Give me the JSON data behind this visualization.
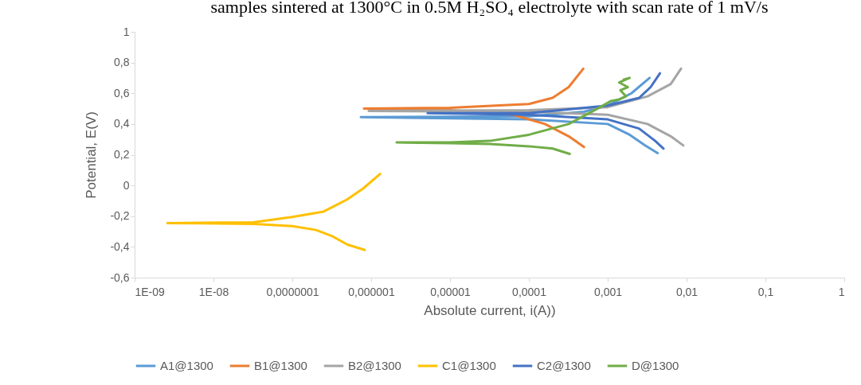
{
  "chart_data": {
    "type": "line",
    "title": "samples sintered at 1300°C in 0.5M H₂SO₄ electrolyte with scan rate of 1 mV/s",
    "xlabel": "Absolute current, i(A))",
    "ylabel": "Potential, E(V)",
    "log": "x",
    "grid": false,
    "legend": "bottom",
    "marker": "none",
    "line_style": "solid",
    "xlim": [
      1e-09,
      1
    ],
    "xticks": [
      {
        "value": 1e-09,
        "label": "1E-09"
      },
      {
        "value": 1e-08,
        "label": "1E-08"
      },
      {
        "value": 1e-07,
        "label": "0,0000001"
      },
      {
        "value": 1e-06,
        "label": "0,000001"
      },
      {
        "value": 1e-05,
        "label": "0,00001"
      },
      {
        "value": 0.0001,
        "label": "0,0001"
      },
      {
        "value": 0.001,
        "label": "0,001"
      },
      {
        "value": 0.01,
        "label": "0,01"
      },
      {
        "value": 0.1,
        "label": "0,1"
      },
      1
    ],
    "ylim": [
      -0.6,
      1
    ],
    "yticks": [
      {
        "value": -0.6,
        "label": "-0,6"
      },
      {
        "value": -0.4,
        "label": "-0,4"
      },
      {
        "value": -0.2,
        "label": "-0,2"
      },
      0,
      {
        "value": 0.2,
        "label": "0,2"
      },
      {
        "value": 0.4,
        "label": "0,4"
      },
      {
        "value": 0.6,
        "label": "0,6"
      },
      {
        "value": 0.8,
        "label": "0,8"
      },
      1
    ],
    "series": [
      {
        "name": "A1@1300",
        "color": "#5b9bd5",
        "x": [
          0.0043,
          0.003,
          0.0019,
          0.001,
          0.0001,
          7.4e-07,
          0.0001,
          0.0005,
          0.001,
          0.002,
          0.0034
        ],
        "values": [
          0.21,
          0.26,
          0.33,
          0.4,
          0.43,
          0.445,
          0.45,
          0.48,
          0.52,
          0.6,
          0.7
        ]
      },
      {
        "name": "B1@1300",
        "color": "#ed7d31",
        "x": [
          0.0005,
          0.00032,
          0.00016,
          6.3e-05,
          1e-05,
          8.1e-07,
          1e-05,
          0.0001,
          0.0002,
          0.00032,
          0.00049
        ],
        "values": [
          0.25,
          0.32,
          0.4,
          0.46,
          0.49,
          0.5,
          0.505,
          0.53,
          0.57,
          0.64,
          0.76
        ]
      },
      {
        "name": "B2@1300",
        "color": "#a5a5a5",
        "x": [
          0.0091,
          0.0063,
          0.0032,
          0.001,
          0.0001,
          9.3e-07,
          0.0001,
          0.001,
          0.0032,
          0.0063,
          0.0085
        ],
        "values": [
          0.26,
          0.32,
          0.4,
          0.46,
          0.48,
          0.485,
          0.49,
          0.51,
          0.58,
          0.66,
          0.76
        ]
      },
      {
        "name": "C1@1300",
        "color": "#ffc000",
        "x": [
          8.3e-07,
          5e-07,
          3.2e-07,
          2e-07,
          1e-07,
          3.2e-08,
          2.6e-09,
          3.2e-08,
          1e-07,
          2.5e-07,
          5e-07,
          7.9e-07,
          1.3e-06
        ],
        "values": [
          -0.42,
          -0.385,
          -0.33,
          -0.29,
          -0.265,
          -0.25,
          -0.245,
          -0.24,
          -0.205,
          -0.17,
          -0.09,
          -0.02,
          0.075
        ]
      },
      {
        "name": "C2@1300",
        "color": "#4472c4",
        "x": [
          0.0051,
          0.004,
          0.0025,
          0.001,
          0.0001,
          5.2e-06,
          0.0001,
          0.001,
          0.0025,
          0.0035,
          0.0046
        ],
        "values": [
          0.24,
          0.29,
          0.37,
          0.43,
          0.46,
          0.47,
          0.47,
          0.52,
          0.57,
          0.64,
          0.73
        ]
      },
      {
        "name": "D@1300",
        "color": "#70ad47",
        "x": [
          0.00033,
          0.0002,
          0.0001,
          3.2e-05,
          1e-05,
          2.1e-06,
          1e-05,
          3.2e-05,
          0.0001,
          0.00032,
          0.00063,
          0.0011,
          0.0014,
          0.0017,
          0.00145,
          0.0018,
          0.0014,
          0.0019,
          0.0016
        ],
        "values": [
          0.205,
          0.24,
          0.255,
          0.27,
          0.275,
          0.28,
          0.28,
          0.29,
          0.33,
          0.4,
          0.48,
          0.55,
          0.56,
          0.58,
          0.62,
          0.64,
          0.67,
          0.7,
          0.69
        ]
      }
    ]
  }
}
